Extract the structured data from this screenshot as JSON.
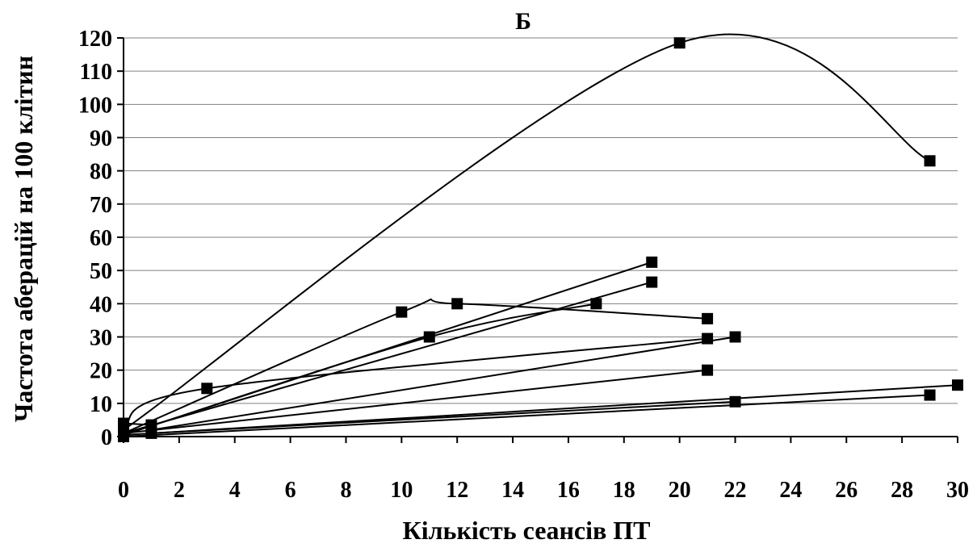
{
  "chart_data": {
    "type": "line",
    "title": "Б",
    "xlabel": "Кількість сеансів ПТ",
    "ylabel": "Частота аберацій на 100 клітин",
    "xlim": [
      0,
      30
    ],
    "ylim": [
      0,
      120
    ],
    "x_ticks": [
      "0",
      "2",
      "4",
      "6",
      "8",
      "10",
      "12",
      "14",
      "16",
      "18",
      "20",
      "22",
      "24",
      "26",
      "28",
      "30"
    ],
    "y_ticks": [
      "0",
      "10",
      "20",
      "30",
      "40",
      "50",
      "60",
      "70",
      "80",
      "90",
      "100",
      "110",
      "120"
    ],
    "grid": "horizontal",
    "legend": "none",
    "line_color": "#000000",
    "marker": "square",
    "series": [
      {
        "x": [
          0,
          20,
          29
        ],
        "y": [
          2,
          118.5,
          83
        ],
        "smooth": true
      },
      {
        "x": [
          0,
          10,
          12,
          21
        ],
        "y": [
          1,
          37.5,
          40,
          35.5
        ],
        "smooth": true
      },
      {
        "x": [
          0,
          19
        ],
        "y": [
          0.5,
          52.5
        ],
        "smooth": false
      },
      {
        "x": [
          0,
          19
        ],
        "y": [
          1,
          46.5
        ],
        "smooth": false
      },
      {
        "x": [
          0,
          11,
          17
        ],
        "y": [
          0.5,
          30,
          40
        ],
        "smooth": true
      },
      {
        "x": [
          0,
          3,
          21
        ],
        "y": [
          3,
          14.5,
          29.5
        ],
        "smooth": true
      },
      {
        "x": [
          1,
          22
        ],
        "y": [
          2,
          30
        ],
        "smooth": false
      },
      {
        "x": [
          0,
          21
        ],
        "y": [
          1,
          20
        ],
        "smooth": false
      },
      {
        "x": [
          0,
          30
        ],
        "y": [
          0.5,
          15.5
        ],
        "smooth": false
      },
      {
        "x": [
          0,
          29
        ],
        "y": [
          0,
          12.5
        ],
        "smooth": false
      },
      {
        "x": [
          1,
          22
        ],
        "y": [
          1,
          10.5
        ],
        "smooth": false
      },
      {
        "x": [
          0,
          1
        ],
        "y": [
          4,
          3.5
        ],
        "smooth": false
      }
    ]
  }
}
